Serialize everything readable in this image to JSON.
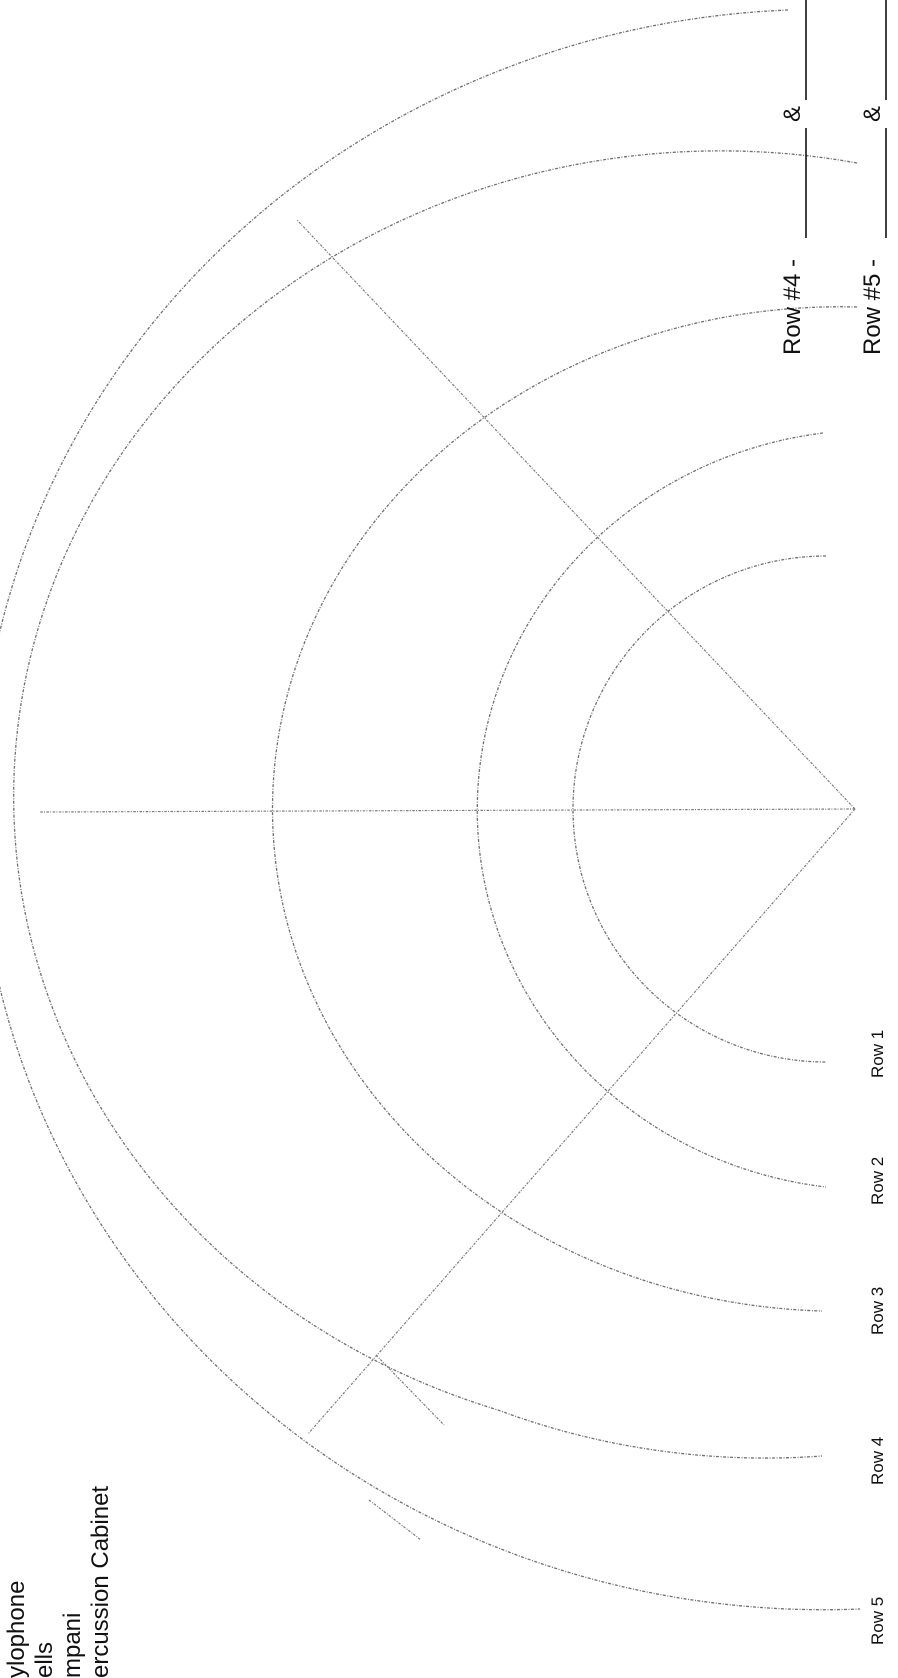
{
  "row_labels": [
    "Row 1",
    "Row 2",
    "Row 3",
    "Row 4",
    "Row 5"
  ],
  "legend": [
    "ylophone",
    "ells",
    "mpani",
    "ercussion Cabinet"
  ],
  "blanks": [
    {
      "label": "Row #4 -",
      "amp": "&"
    },
    {
      "label": "Row #5 -",
      "amp": "&"
    }
  ]
}
